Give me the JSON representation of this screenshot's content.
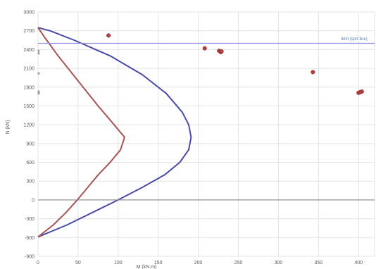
{
  "chart_data": {
    "type": "scatter",
    "title": "",
    "xlabel": "M (kN.m)",
    "ylabel": "N (kN)",
    "xlim": [
      0,
      420
    ],
    "ylim": [
      -900,
      3000
    ],
    "x_ticks": [
      0,
      50,
      100,
      150,
      200,
      250,
      300,
      350,
      400
    ],
    "y_ticks": [
      3000,
      2700,
      2400,
      2100,
      1800,
      1500,
      1200,
      900,
      600,
      300,
      0,
      -300,
      -600,
      -900
    ],
    "grid": true,
    "legend": "none",
    "series": [
      {
        "kind": "line",
        "color": "#4a4aa8",
        "points": [
          [
            0,
            2750
          ],
          [
            15,
            2700
          ],
          [
            45,
            2550
          ],
          [
            90,
            2300
          ],
          [
            130,
            2000
          ],
          [
            160,
            1700
          ],
          [
            180,
            1400
          ],
          [
            188,
            1200
          ],
          [
            191,
            1000
          ],
          [
            188,
            800
          ],
          [
            177,
            600
          ],
          [
            158,
            400
          ],
          [
            130,
            200
          ],
          [
            100,
            0
          ],
          [
            68,
            -200
          ],
          [
            36,
            -400
          ],
          [
            0,
            -590
          ]
        ]
      },
      {
        "kind": "line",
        "color": "#a55555",
        "points": [
          [
            0,
            2750
          ],
          [
            8,
            2600
          ],
          [
            25,
            2300
          ],
          [
            50,
            1900
          ],
          [
            75,
            1500
          ],
          [
            95,
            1200
          ],
          [
            108,
            1000
          ],
          [
            103,
            800
          ],
          [
            90,
            600
          ],
          [
            75,
            400
          ],
          [
            62,
            200
          ],
          [
            49,
            0
          ],
          [
            35,
            -200
          ],
          [
            19,
            -400
          ],
          [
            0,
            -590
          ]
        ]
      },
      {
        "kind": "scatter",
        "color": "#b04040",
        "points": [
          [
            88,
            2625
          ],
          [
            208,
            2420
          ],
          [
            226,
            2380
          ],
          [
            228,
            2360
          ],
          [
            229,
            2370
          ],
          [
            343,
            2040
          ],
          [
            400,
            1710
          ],
          [
            402,
            1720
          ],
          [
            404,
            1730
          ]
        ]
      },
      {
        "kind": "hline",
        "color": "#8f8fdf",
        "y": 2500
      },
      {
        "kind": "hline",
        "color": "#888888",
        "y": 0
      }
    ],
    "annotations": [
      {
        "text": "limit (sprt line)",
        "x": 380,
        "y": 2530
      }
    ]
  }
}
